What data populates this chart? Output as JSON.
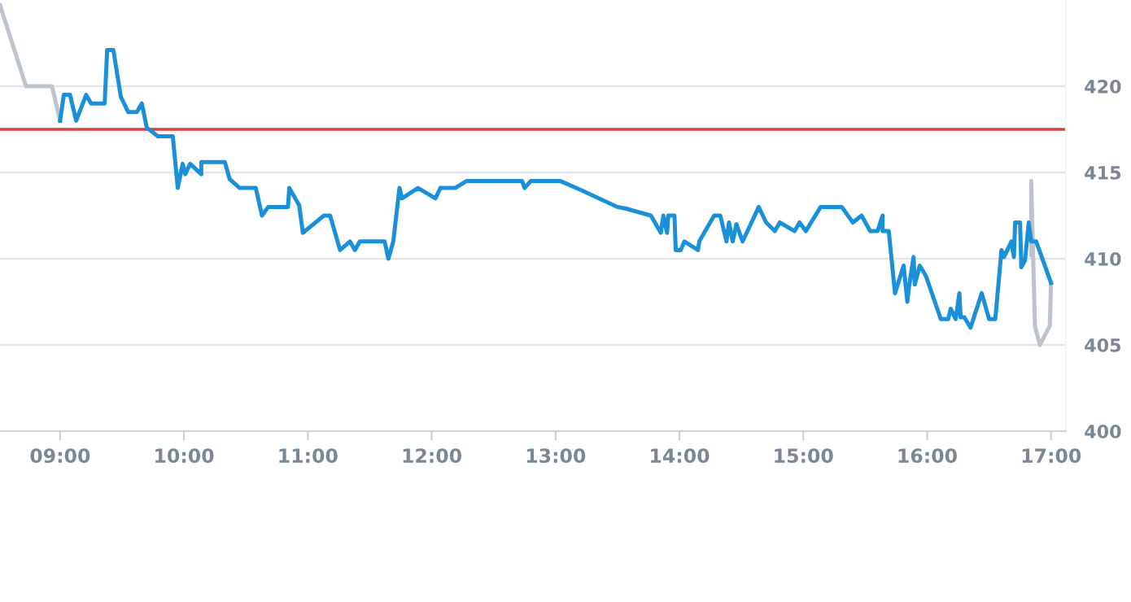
{
  "chart_data": {
    "type": "line",
    "xlim": [
      8.515,
      17.12
    ],
    "ylim": [
      400,
      425
    ],
    "xticks": [
      {
        "value": 9,
        "label": "09:00"
      },
      {
        "value": 10,
        "label": "10:00"
      },
      {
        "value": 11,
        "label": "11:00"
      },
      {
        "value": 12,
        "label": "12:00"
      },
      {
        "value": 13,
        "label": "13:00"
      },
      {
        "value": 14,
        "label": "14:00"
      },
      {
        "value": 15,
        "label": "15:00"
      },
      {
        "value": 16,
        "label": "16:00"
      },
      {
        "value": 17,
        "label": "17:00"
      }
    ],
    "yticks": [
      400,
      405,
      410,
      415,
      420
    ],
    "grid": "y",
    "legend": false,
    "marker": "none",
    "line_style": "solid",
    "ref_lines": [
      {
        "axis": "y",
        "value": 417.5,
        "color": "#d9413a"
      }
    ],
    "series": [
      {
        "color": "#bcc3cc",
        "x": [
          8.515,
          8.725,
          8.935,
          9.0
        ],
        "values": [
          424.7,
          420,
          420,
          418
        ]
      },
      {
        "color": "#bcc3cc",
        "x": [
          16.84,
          16.84,
          16.87,
          16.91,
          16.99,
          17.0
        ],
        "values": [
          410.2,
          414.5,
          406.1,
          405.0,
          406.1,
          408.6
        ]
      },
      {
        "color": "#1a90d9",
        "x": [
          9.0,
          9.03,
          9.08,
          9.13,
          9.21,
          9.25,
          9.36,
          9.38,
          9.43,
          9.49,
          9.55,
          9.62,
          9.66,
          9.7,
          9.79,
          9.91,
          9.95,
          9.99,
          10.01,
          10.05,
          10.14,
          10.14,
          10.33,
          10.37,
          10.45,
          10.58,
          10.63,
          10.68,
          10.84,
          10.85,
          10.93,
          10.96,
          11.13,
          11.18,
          11.26,
          11.34,
          11.38,
          11.42,
          11.62,
          11.65,
          11.69,
          11.74,
          11.76,
          11.89,
          12.03,
          12.07,
          12.19,
          12.28,
          12.73,
          12.75,
          12.8,
          13.04,
          13.2,
          13.5,
          13.57,
          13.77,
          13.85,
          13.87,
          13.9,
          13.91,
          13.96,
          13.97,
          14.01,
          14.04,
          14.15,
          14.16,
          14.28,
          14.33,
          14.38,
          14.4,
          14.43,
          14.46,
          14.51,
          14.64,
          14.7,
          14.77,
          14.81,
          14.93,
          14.97,
          15.02,
          15.14,
          15.31,
          15.4,
          15.47,
          15.54,
          15.6,
          15.64,
          15.64,
          15.69,
          15.74,
          15.81,
          15.84,
          15.85,
          15.89,
          15.9,
          15.94,
          15.99,
          16.11,
          16.17,
          16.19,
          16.23,
          16.26,
          16.27,
          16.3,
          16.35,
          16.44,
          16.5,
          16.55,
          16.6,
          16.62,
          16.68,
          16.7,
          16.71,
          16.75,
          16.76,
          16.79,
          16.82,
          16.84,
          16.88,
          17.0
        ],
        "values": [
          418.0,
          419.5,
          419.5,
          418.0,
          419.5,
          419.0,
          419.0,
          422.1,
          422.1,
          419.4,
          418.5,
          418.5,
          419.0,
          417.6,
          417.1,
          417.1,
          414.1,
          415.5,
          414.9,
          415.5,
          414.9,
          415.6,
          415.6,
          414.6,
          414.1,
          414.1,
          412.5,
          413.0,
          413.0,
          414.1,
          413.1,
          411.5,
          412.5,
          412.5,
          410.5,
          411.0,
          410.5,
          411.0,
          411.0,
          410.0,
          411.0,
          414.1,
          413.5,
          414.1,
          413.5,
          414.1,
          414.1,
          414.5,
          414.5,
          414.1,
          414.5,
          414.5,
          414.0,
          413.0,
          412.9,
          412.5,
          411.5,
          412.5,
          411.5,
          412.5,
          412.5,
          410.5,
          410.5,
          411.0,
          410.5,
          411.0,
          412.5,
          412.5,
          411.0,
          412.1,
          411.0,
          412.0,
          411.0,
          413.0,
          412.1,
          411.6,
          412.1,
          411.6,
          412.1,
          411.6,
          413.0,
          413.0,
          412.1,
          412.5,
          411.6,
          411.6,
          412.5,
          411.6,
          411.6,
          408.0,
          409.6,
          407.5,
          408.2,
          410.1,
          408.5,
          409.6,
          409.0,
          406.5,
          406.5,
          407.1,
          406.5,
          408.0,
          406.6,
          406.6,
          406.0,
          408.0,
          406.5,
          406.5,
          410.5,
          410.1,
          411.0,
          410.1,
          412.1,
          412.1,
          409.5,
          409.9,
          412.1,
          411.0,
          411.0,
          408.6
        ]
      }
    ]
  }
}
